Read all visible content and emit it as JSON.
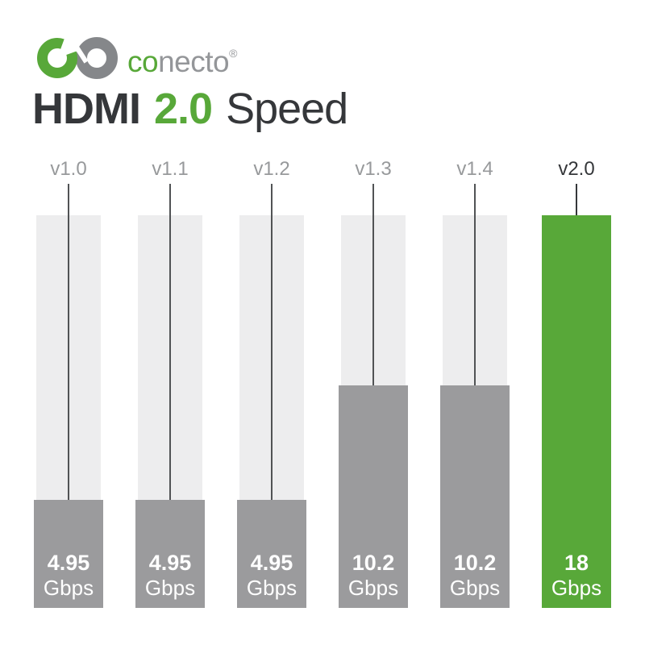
{
  "brand": {
    "wordmark_co": "co",
    "wordmark_rest": "necto",
    "registered": "®"
  },
  "title": {
    "part1": "HDMI",
    "part2": "2.0",
    "part3": "Speed"
  },
  "colors": {
    "green": "#58a839",
    "bar_gray": "#9b9b9d",
    "track": "#ededee",
    "title_dark": "#35373a",
    "label_gray": "#97999b",
    "line": "#515355",
    "wordmark_gray": "#949699",
    "logo_gray": "#85878a"
  },
  "chart_data": {
    "type": "bar",
    "title": "HDMI 2.0 Speed",
    "categories": [
      "v1.0",
      "v1.1",
      "v1.2",
      "v1.3",
      "v1.4",
      "v2.0"
    ],
    "values": [
      4.95,
      4.95,
      4.95,
      10.2,
      10.2,
      18
    ],
    "value_labels": [
      "4.95",
      "4.95",
      "4.95",
      "10.2",
      "10.2",
      "18"
    ],
    "unit": "Gbps",
    "ylim": [
      0,
      18
    ],
    "highlight_index": 5,
    "grid": false,
    "legend": false,
    "orientation": "vertical",
    "value_label_position": "inside-bottom"
  }
}
